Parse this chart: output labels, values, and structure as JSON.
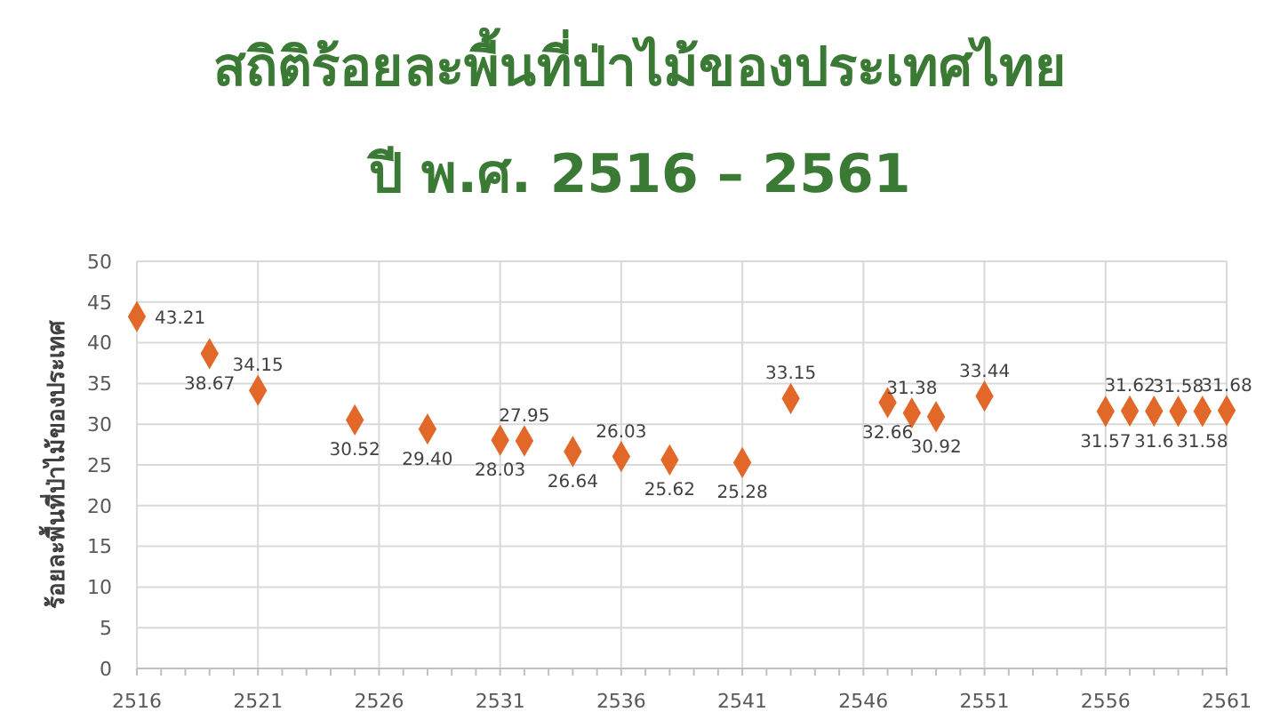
{
  "chart_data": {
    "type": "scatter",
    "title": "สถิติร้อยละพื้นที่ป่าไม้ของประเทศไทย",
    "subtitle": "ปี พ.ศ. 2516 – 2561",
    "ylabel": "ร้อยละพื้นที่ป่าไม้ของประเทศ",
    "x": [
      2516,
      2519,
      2521,
      2525,
      2528,
      2531,
      2532,
      2534,
      2536,
      2538,
      2541,
      2543,
      2547,
      2548,
      2549,
      2551,
      2556,
      2557,
      2558,
      2559,
      2560,
      2561
    ],
    "values": [
      43.21,
      38.67,
      34.15,
      30.52,
      29.4,
      28.03,
      27.95,
      26.64,
      26.03,
      25.62,
      25.28,
      33.15,
      32.66,
      31.38,
      30.92,
      33.44,
      31.57,
      31.62,
      31.6,
      31.58,
      31.58,
      31.68
    ],
    "value_labels": [
      "43.21",
      "38.67",
      "34.15",
      "30.52",
      "29.40",
      "28.03",
      "27.95",
      "26.64",
      "26.03",
      "25.62",
      "25.28",
      "33.15",
      "32.66",
      "31.38",
      "30.92",
      "33.44",
      "31.57",
      "31.62",
      "31.6",
      "31.58",
      "31.58",
      "31.68"
    ],
    "color": "#e2682a",
    "marker": "diamond",
    "xlim": [
      2516,
      2561
    ],
    "xticks": [
      2516,
      2521,
      2526,
      2531,
      2536,
      2541,
      2546,
      2551,
      2556,
      2561
    ],
    "ylim": [
      0,
      50
    ],
    "yticks": [
      0,
      5,
      10,
      15,
      20,
      25,
      30,
      35,
      40,
      45,
      50
    ],
    "grid": true
  }
}
